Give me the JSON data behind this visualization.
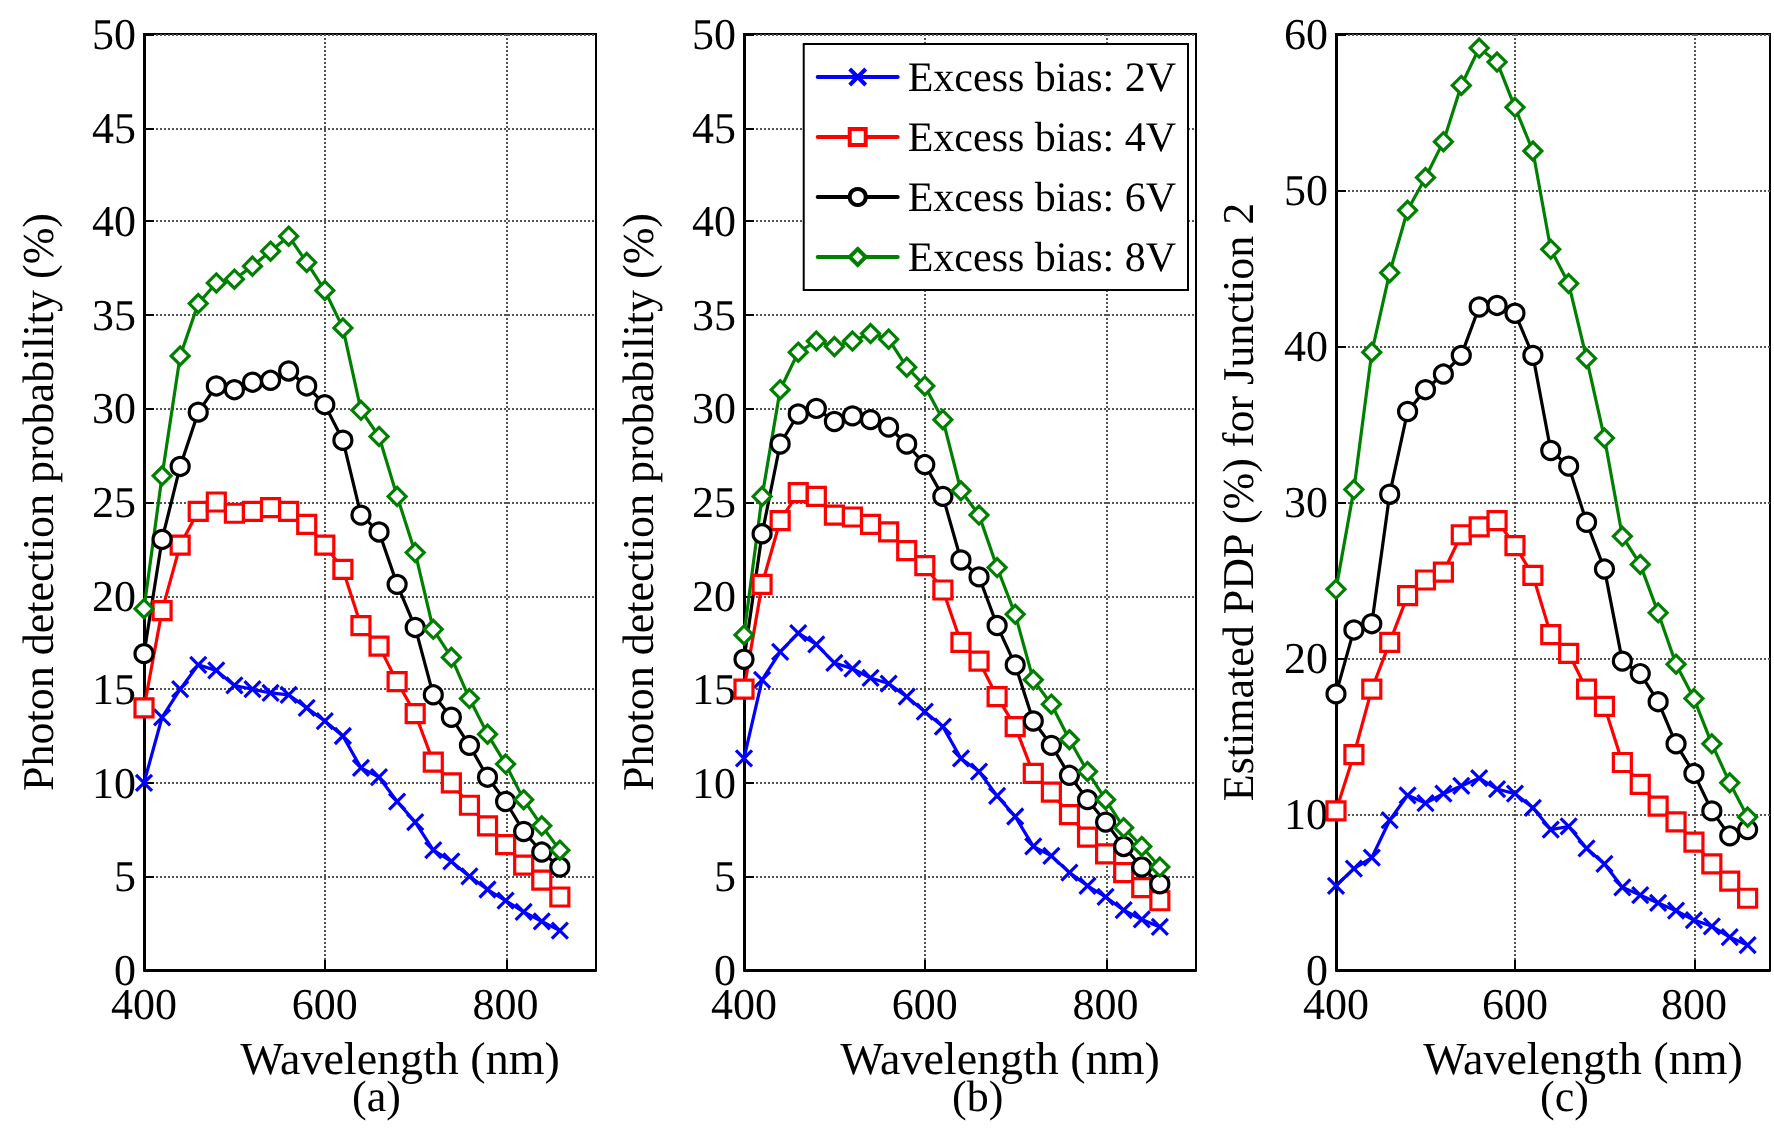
{
  "chart_data": [
    {
      "type": "line",
      "xlabel": "Wavelength (nm)",
      "ylabel": "Photon detection probability (%)",
      "annotations": [
        "(a)"
      ],
      "x": [
        400,
        420,
        440,
        460,
        480,
        500,
        520,
        540,
        560,
        580,
        600,
        620,
        640,
        660,
        680,
        700,
        720,
        740,
        760,
        780,
        800,
        820,
        840,
        860
      ],
      "xlim": [
        400,
        900
      ],
      "xticks": [
        400,
        600,
        800
      ],
      "ylim": [
        0,
        50
      ],
      "yticks": [
        0,
        5,
        10,
        15,
        20,
        25,
        30,
        35,
        40,
        45,
        50
      ],
      "grid": true,
      "legend": false,
      "line_style": "solid",
      "series": [
        {
          "color": "#0000ff",
          "marker": "cross",
          "values": [
            10,
            13.5,
            15,
            16.3,
            16,
            15.2,
            15,
            14.8,
            14.7,
            14,
            13.3,
            12.5,
            10.8,
            10.3,
            9,
            7.9,
            6.4,
            5.8,
            5,
            4.3,
            3.7,
            3.1,
            2.6,
            2.1
          ]
        },
        {
          "color": "#ff0000",
          "marker": "square",
          "values": [
            14,
            19.2,
            22.7,
            24.5,
            25,
            24.4,
            24.5,
            24.7,
            24.5,
            23.8,
            22.7,
            21.4,
            18.4,
            17.3,
            15.4,
            13.7,
            11.1,
            10,
            8.8,
            7.7,
            6.7,
            5.6,
            4.8,
            3.9
          ]
        },
        {
          "color": "#000000",
          "marker": "circle",
          "values": [
            16.9,
            23,
            26.9,
            29.8,
            31.2,
            31,
            31.4,
            31.5,
            32,
            31.2,
            30.2,
            28.3,
            24.3,
            23.4,
            20.6,
            18.3,
            14.7,
            13.5,
            12,
            10.3,
            9,
            7.4,
            6.3,
            5.5
          ]
        },
        {
          "color": "#008000",
          "marker": "diamond",
          "values": [
            19.3,
            26.4,
            32.8,
            35.6,
            36.7,
            36.9,
            37.6,
            38.4,
            39.2,
            37.8,
            36.3,
            34.3,
            29.9,
            28.5,
            25.3,
            22.3,
            18.2,
            16.7,
            14.5,
            12.6,
            11,
            9.1,
            7.7,
            6.4
          ]
        }
      ]
    },
    {
      "type": "line",
      "xlabel": "Wavelength (nm)",
      "ylabel": "Photon detection probability (%)",
      "annotations": [
        "(b)"
      ],
      "x": [
        400,
        420,
        440,
        460,
        480,
        500,
        520,
        540,
        560,
        580,
        600,
        620,
        640,
        660,
        680,
        700,
        720,
        740,
        760,
        780,
        800,
        820,
        840,
        860
      ],
      "xlim": [
        400,
        900
      ],
      "xticks": [
        400,
        600,
        800
      ],
      "ylim": [
        0,
        50
      ],
      "yticks": [
        0,
        5,
        10,
        15,
        20,
        25,
        30,
        35,
        40,
        45,
        50
      ],
      "grid": true,
      "legend": "top right",
      "line_style": "solid",
      "series": [
        {
          "name": "Excess bias: 2V",
          "color": "#0000ff",
          "marker": "cross",
          "values": [
            11.3,
            15.5,
            17,
            18,
            17.4,
            16.4,
            16.1,
            15.6,
            15.3,
            14.6,
            13.8,
            13,
            11.3,
            10.6,
            9.3,
            8.2,
            6.6,
            6.1,
            5.2,
            4.5,
            3.9,
            3.2,
            2.7,
            2.3
          ]
        },
        {
          "name": "Excess bias: 4V",
          "color": "#ff0000",
          "marker": "square",
          "values": [
            15,
            20.6,
            24,
            25.5,
            25.3,
            24.3,
            24.2,
            23.8,
            23.4,
            22.4,
            21.6,
            20.3,
            17.5,
            16.5,
            14.6,
            13,
            10.5,
            9.5,
            8.3,
            7.1,
            6.2,
            5.2,
            4.4,
            3.7
          ]
        },
        {
          "name": "Excess bias: 6V",
          "color": "#000000",
          "marker": "circle",
          "values": [
            16.6,
            23.3,
            28.1,
            29.7,
            30,
            29.3,
            29.6,
            29.4,
            29,
            28.1,
            27,
            25.3,
            21.9,
            21,
            18.4,
            16.3,
            13.3,
            12,
            10.4,
            9.1,
            7.9,
            6.6,
            5.5,
            4.6
          ]
        },
        {
          "name": "Excess bias: 8V",
          "color": "#008000",
          "marker": "diamond",
          "values": [
            17.9,
            25.3,
            31,
            33,
            33.6,
            33.3,
            33.6,
            34,
            33.7,
            32.2,
            31.2,
            29.4,
            25.6,
            24.3,
            21.5,
            19,
            15.5,
            14.2,
            12.3,
            10.6,
            9.1,
            7.6,
            6.6,
            5.5
          ]
        }
      ]
    },
    {
      "type": "line",
      "xlabel": "Wavelength (nm)",
      "ylabel": "Estimated PDP (%) for Junction 2",
      "annotations": [
        "(c)"
      ],
      "x": [
        400,
        420,
        440,
        460,
        480,
        500,
        520,
        540,
        560,
        580,
        600,
        620,
        640,
        660,
        680,
        700,
        720,
        740,
        760,
        780,
        800,
        820,
        840,
        860
      ],
      "xlim": [
        400,
        885
      ],
      "xticks": [
        400,
        600,
        800
      ],
      "ylim": [
        0,
        60
      ],
      "yticks": [
        0,
        10,
        20,
        30,
        40,
        50,
        60
      ],
      "grid": true,
      "legend": false,
      "line_style": "solid",
      "series": [
        {
          "color": "#0000ff",
          "marker": "cross",
          "values": [
            5.4,
            6.5,
            7.2,
            9.6,
            11.2,
            10.7,
            11.3,
            11.8,
            12.3,
            11.6,
            11.3,
            10.4,
            9,
            9.2,
            7.8,
            6.8,
            5.3,
            4.8,
            4.3,
            3.8,
            3.2,
            2.8,
            2.1,
            1.6
          ]
        },
        {
          "color": "#ff0000",
          "marker": "square",
          "values": [
            10.2,
            13.8,
            18,
            21,
            24,
            25,
            25.5,
            27.9,
            28.4,
            28.8,
            27.2,
            25.3,
            21.5,
            20.3,
            18,
            16.9,
            13.3,
            11.9,
            10.5,
            9.5,
            8.2,
            6.8,
            5.7,
            4.6
          ]
        },
        {
          "color": "#000000",
          "marker": "circle",
          "values": [
            17.7,
            21.8,
            22.2,
            30.5,
            35.8,
            37.2,
            38.2,
            39.4,
            42.5,
            42.6,
            42.1,
            39.4,
            33.3,
            32.3,
            28.7,
            25.7,
            19.8,
            19,
            17.2,
            14.5,
            12.6,
            10.2,
            8.6,
            9.0
          ]
        },
        {
          "color": "#008000",
          "marker": "diamond",
          "values": [
            24.4,
            30.8,
            39.6,
            44.7,
            48.7,
            50.8,
            53.1,
            56.7,
            59.1,
            58.2,
            55.3,
            52.5,
            46.2,
            44,
            39.2,
            34.1,
            27.8,
            26,
            22.9,
            19.6,
            17.4,
            14.5,
            12,
            9.8
          ]
        }
      ]
    }
  ]
}
